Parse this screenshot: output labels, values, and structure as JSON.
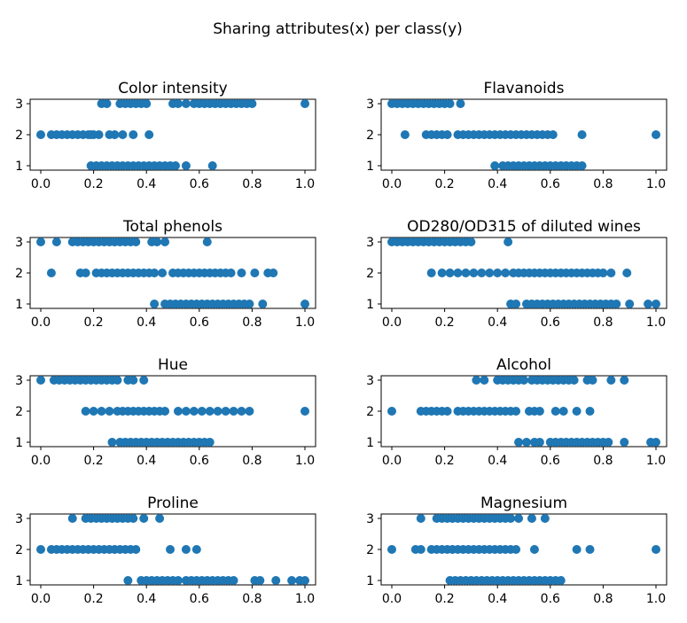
{
  "figure": {
    "title": "Sharing attributes(x) per class(y)",
    "marker_color": "#1f77b4"
  },
  "chart_data": [
    {
      "type": "scatter",
      "title": "Color intensity",
      "xlim": [
        0,
        1
      ],
      "ylim": [
        0.8,
        3.2
      ],
      "xticks": [
        "0.0",
        "0.2",
        "0.4",
        "0.6",
        "0.8",
        "1.0"
      ],
      "yticks": [
        "1",
        "2",
        "3"
      ],
      "series": [
        {
          "class": 3,
          "x": [
            0.23,
            0.25,
            0.3,
            0.32,
            0.34,
            0.36,
            0.38,
            0.4,
            0.5,
            0.52,
            0.55,
            0.58,
            0.6,
            0.62,
            0.64,
            0.66,
            0.68,
            0.7,
            0.72,
            0.74,
            0.76,
            0.78,
            0.8,
            1.0
          ]
        },
        {
          "class": 2,
          "x": [
            0.0,
            0.04,
            0.06,
            0.08,
            0.1,
            0.12,
            0.14,
            0.16,
            0.18,
            0.19,
            0.2,
            0.22,
            0.26,
            0.28,
            0.31,
            0.35,
            0.41
          ]
        },
        {
          "class": 1,
          "x": [
            0.19,
            0.21,
            0.23,
            0.25,
            0.27,
            0.29,
            0.31,
            0.33,
            0.35,
            0.37,
            0.39,
            0.41,
            0.43,
            0.45,
            0.47,
            0.49,
            0.51,
            0.55,
            0.65
          ]
        }
      ]
    },
    {
      "type": "scatter",
      "title": "Flavanoids",
      "xlim": [
        0,
        1
      ],
      "ylim": [
        0.8,
        3.2
      ],
      "xticks": [
        "0.0",
        "0.2",
        "0.4",
        "0.6",
        "0.8",
        "1.0"
      ],
      "yticks": [
        "1",
        "2",
        "3"
      ],
      "series": [
        {
          "class": 3,
          "x": [
            0.0,
            0.02,
            0.04,
            0.06,
            0.08,
            0.1,
            0.12,
            0.14,
            0.16,
            0.18,
            0.2,
            0.22,
            0.26
          ]
        },
        {
          "class": 2,
          "x": [
            0.05,
            0.13,
            0.15,
            0.17,
            0.19,
            0.21,
            0.25,
            0.27,
            0.29,
            0.31,
            0.33,
            0.35,
            0.37,
            0.39,
            0.41,
            0.43,
            0.45,
            0.47,
            0.49,
            0.51,
            0.53,
            0.55,
            0.57,
            0.59,
            0.61,
            0.72,
            1.0
          ]
        },
        {
          "class": 1,
          "x": [
            0.39,
            0.42,
            0.44,
            0.46,
            0.48,
            0.5,
            0.52,
            0.54,
            0.56,
            0.58,
            0.6,
            0.62,
            0.64,
            0.66,
            0.68,
            0.7,
            0.72
          ]
        }
      ]
    },
    {
      "type": "scatter",
      "title": "Total phenols",
      "xlim": [
        0,
        1
      ],
      "ylim": [
        0.8,
        3.2
      ],
      "xticks": [
        "0.0",
        "0.2",
        "0.4",
        "0.6",
        "0.8",
        "1.0"
      ],
      "yticks": [
        "1",
        "2",
        "3"
      ],
      "series": [
        {
          "class": 3,
          "x": [
            0.0,
            0.06,
            0.12,
            0.14,
            0.16,
            0.18,
            0.2,
            0.22,
            0.24,
            0.26,
            0.28,
            0.3,
            0.32,
            0.34,
            0.36,
            0.42,
            0.44,
            0.47,
            0.63
          ]
        },
        {
          "class": 2,
          "x": [
            0.04,
            0.15,
            0.17,
            0.21,
            0.23,
            0.25,
            0.27,
            0.29,
            0.31,
            0.33,
            0.35,
            0.37,
            0.39,
            0.41,
            0.43,
            0.46,
            0.5,
            0.52,
            0.54,
            0.56,
            0.58,
            0.6,
            0.62,
            0.64,
            0.66,
            0.68,
            0.7,
            0.72,
            0.76,
            0.81,
            0.86,
            0.88
          ]
        },
        {
          "class": 1,
          "x": [
            0.43,
            0.47,
            0.49,
            0.51,
            0.53,
            0.55,
            0.57,
            0.59,
            0.61,
            0.63,
            0.65,
            0.67,
            0.69,
            0.71,
            0.73,
            0.75,
            0.77,
            0.79,
            0.84,
            1.0
          ]
        }
      ]
    },
    {
      "type": "scatter",
      "title": "OD280/OD315 of diluted wines",
      "xlim": [
        0,
        1
      ],
      "ylim": [
        0.8,
        3.2
      ],
      "xticks": [
        "0.0",
        "0.2",
        "0.4",
        "0.6",
        "0.8",
        "1.0"
      ],
      "yticks": [
        "1",
        "2",
        "3"
      ],
      "series": [
        {
          "class": 3,
          "x": [
            0.0,
            0.02,
            0.04,
            0.06,
            0.08,
            0.1,
            0.12,
            0.14,
            0.16,
            0.18,
            0.2,
            0.22,
            0.24,
            0.26,
            0.28,
            0.3,
            0.44
          ]
        },
        {
          "class": 2,
          "x": [
            0.15,
            0.19,
            0.22,
            0.25,
            0.28,
            0.31,
            0.34,
            0.37,
            0.4,
            0.43,
            0.46,
            0.48,
            0.5,
            0.52,
            0.54,
            0.56,
            0.58,
            0.6,
            0.62,
            0.64,
            0.66,
            0.68,
            0.7,
            0.72,
            0.74,
            0.76,
            0.78,
            0.8,
            0.83,
            0.89
          ]
        },
        {
          "class": 1,
          "x": [
            0.45,
            0.47,
            0.51,
            0.53,
            0.55,
            0.57,
            0.59,
            0.61,
            0.63,
            0.65,
            0.67,
            0.69,
            0.71,
            0.73,
            0.75,
            0.77,
            0.79,
            0.81,
            0.83,
            0.85,
            0.9,
            0.97,
            1.0
          ]
        }
      ]
    },
    {
      "type": "scatter",
      "title": "Hue",
      "xlim": [
        0,
        1
      ],
      "ylim": [
        0.8,
        3.2
      ],
      "xticks": [
        "0.0",
        "0.2",
        "0.4",
        "0.6",
        "0.8",
        "1.0"
      ],
      "yticks": [
        "1",
        "2",
        "3"
      ],
      "series": [
        {
          "class": 3,
          "x": [
            0.0,
            0.05,
            0.07,
            0.09,
            0.11,
            0.13,
            0.15,
            0.17,
            0.19,
            0.21,
            0.23,
            0.25,
            0.27,
            0.29,
            0.33,
            0.35,
            0.39
          ]
        },
        {
          "class": 2,
          "x": [
            0.17,
            0.2,
            0.23,
            0.26,
            0.29,
            0.31,
            0.33,
            0.35,
            0.37,
            0.39,
            0.41,
            0.43,
            0.45,
            0.47,
            0.52,
            0.55,
            0.58,
            0.61,
            0.64,
            0.67,
            0.7,
            0.73,
            0.76,
            0.79,
            1.0
          ]
        },
        {
          "class": 1,
          "x": [
            0.27,
            0.3,
            0.32,
            0.34,
            0.36,
            0.38,
            0.4,
            0.42,
            0.44,
            0.46,
            0.48,
            0.5,
            0.52,
            0.54,
            0.56,
            0.58,
            0.6,
            0.62,
            0.64
          ]
        }
      ]
    },
    {
      "type": "scatter",
      "title": "Alcohol",
      "xlim": [
        0,
        1
      ],
      "ylim": [
        0.8,
        3.2
      ],
      "xticks": [
        "0.0",
        "0.2",
        "0.4",
        "0.6",
        "0.8",
        "1.0"
      ],
      "yticks": [
        "1",
        "2",
        "3"
      ],
      "series": [
        {
          "class": 3,
          "x": [
            0.32,
            0.35,
            0.4,
            0.42,
            0.44,
            0.46,
            0.48,
            0.5,
            0.53,
            0.55,
            0.57,
            0.59,
            0.61,
            0.63,
            0.65,
            0.67,
            0.69,
            0.74,
            0.76,
            0.83,
            0.88
          ]
        },
        {
          "class": 2,
          "x": [
            0.0,
            0.11,
            0.13,
            0.15,
            0.17,
            0.19,
            0.21,
            0.25,
            0.27,
            0.29,
            0.31,
            0.33,
            0.35,
            0.37,
            0.39,
            0.41,
            0.43,
            0.45,
            0.47,
            0.52,
            0.54,
            0.56,
            0.62,
            0.65,
            0.7,
            0.75
          ]
        },
        {
          "class": 1,
          "x": [
            0.48,
            0.51,
            0.54,
            0.56,
            0.6,
            0.62,
            0.64,
            0.66,
            0.68,
            0.7,
            0.72,
            0.74,
            0.76,
            0.78,
            0.8,
            0.82,
            0.88,
            0.98,
            1.0
          ]
        }
      ]
    },
    {
      "type": "scatter",
      "title": "Proline",
      "xlim": [
        0,
        1
      ],
      "ylim": [
        0.8,
        3.2
      ],
      "xticks": [
        "0.0",
        "0.2",
        "0.4",
        "0.6",
        "0.8",
        "1.0"
      ],
      "yticks": [
        "1",
        "2",
        "3"
      ],
      "series": [
        {
          "class": 3,
          "x": [
            0.12,
            0.17,
            0.19,
            0.21,
            0.23,
            0.25,
            0.27,
            0.29,
            0.31,
            0.33,
            0.35,
            0.39,
            0.45
          ]
        },
        {
          "class": 2,
          "x": [
            0.0,
            0.04,
            0.06,
            0.08,
            0.1,
            0.12,
            0.14,
            0.16,
            0.18,
            0.2,
            0.22,
            0.24,
            0.26,
            0.28,
            0.3,
            0.32,
            0.34,
            0.36,
            0.49,
            0.55,
            0.59
          ]
        },
        {
          "class": 1,
          "x": [
            0.33,
            0.38,
            0.4,
            0.42,
            0.44,
            0.46,
            0.48,
            0.5,
            0.52,
            0.55,
            0.57,
            0.59,
            0.61,
            0.63,
            0.65,
            0.67,
            0.69,
            0.71,
            0.73,
            0.81,
            0.83,
            0.89,
            0.95,
            0.98,
            1.0
          ]
        }
      ]
    },
    {
      "type": "scatter",
      "title": "Magnesium",
      "xlim": [
        0,
        1
      ],
      "ylim": [
        0.8,
        3.2
      ],
      "xticks": [
        "0.0",
        "0.2",
        "0.4",
        "0.6",
        "0.8",
        "1.0"
      ],
      "yticks": [
        "1",
        "2",
        "3"
      ],
      "series": [
        {
          "class": 3,
          "x": [
            0.11,
            0.17,
            0.19,
            0.21,
            0.23,
            0.25,
            0.27,
            0.29,
            0.31,
            0.33,
            0.35,
            0.37,
            0.39,
            0.41,
            0.43,
            0.45,
            0.48,
            0.53,
            0.58
          ]
        },
        {
          "class": 2,
          "x": [
            0.0,
            0.09,
            0.11,
            0.15,
            0.17,
            0.19,
            0.21,
            0.23,
            0.25,
            0.27,
            0.29,
            0.31,
            0.33,
            0.35,
            0.37,
            0.39,
            0.41,
            0.43,
            0.45,
            0.47,
            0.54,
            0.7,
            0.75,
            1.0
          ]
        },
        {
          "class": 1,
          "x": [
            0.22,
            0.24,
            0.26,
            0.28,
            0.3,
            0.32,
            0.34,
            0.36,
            0.38,
            0.4,
            0.42,
            0.44,
            0.46,
            0.48,
            0.5,
            0.52,
            0.54,
            0.56,
            0.58,
            0.6,
            0.62,
            0.64
          ]
        }
      ]
    }
  ]
}
